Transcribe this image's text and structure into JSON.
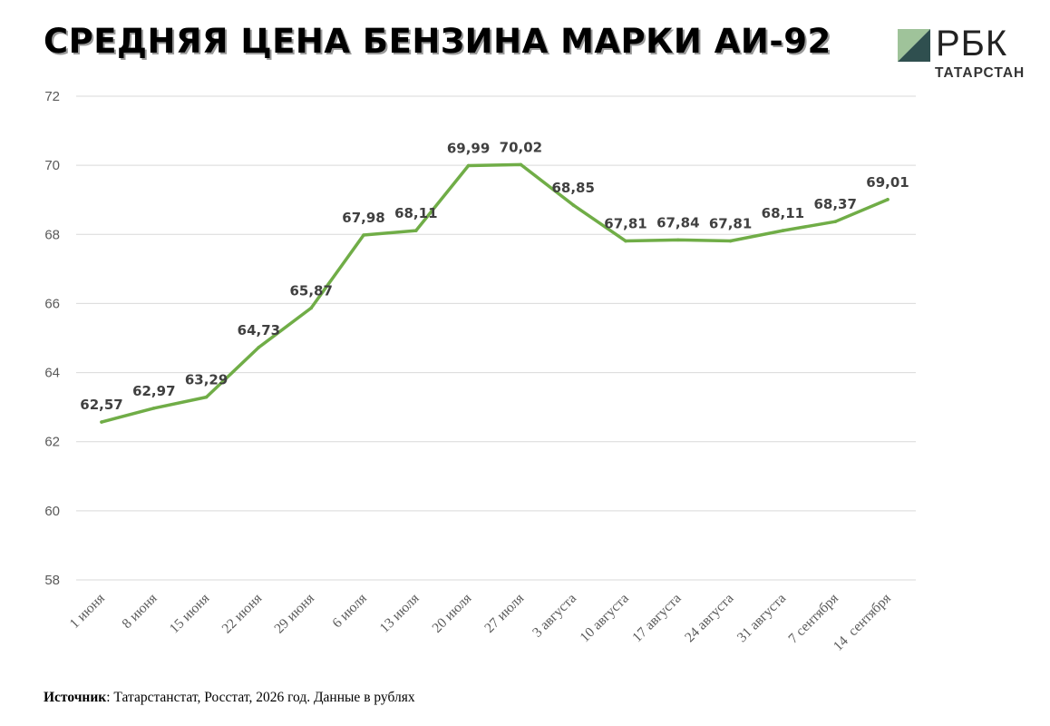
{
  "header": {
    "title": "СРЕДНЯЯ ЦЕНА БЕНЗИНА МАРКИ АИ-92"
  },
  "logo": {
    "wordmark": "РБК",
    "subtitle": "ТАТАРСТАН",
    "colors": {
      "light": "#9fc39a",
      "dark": "#2f4f4f"
    }
  },
  "footer": {
    "source_label": "Источник",
    "source_text": ": Татарстанстат, Росстат, 2026 год. Данные в рублях"
  },
  "chart_data": {
    "type": "line",
    "title": "СРЕДНЯЯ ЦЕНА БЕНЗИНА МАРКИ АИ-92",
    "xlabel": "",
    "ylabel": "",
    "categories": [
      "1 июня",
      "8 июня",
      "15 июня",
      "22 июня",
      "29 июня",
      "6 июля",
      "13 июля",
      "20 июля",
      "27 июля",
      "3 августа",
      "10 августа",
      "17 августа",
      "24 августа",
      "31 августа",
      "7 сентября",
      "14  сентября"
    ],
    "series": [
      {
        "values": [
          62.57,
          62.97,
          63.29,
          64.73,
          65.87,
          67.98,
          68.11,
          69.99,
          70.02,
          68.85,
          67.81,
          67.84,
          67.81,
          68.11,
          68.37,
          69.01
        ],
        "labels": [
          "62,57",
          "62,97",
          "63,29",
          "64,73",
          "65,87",
          "67,98",
          "68,11",
          "69,99",
          "70,02",
          "68,85",
          "67,81",
          "67,84",
          "67,81",
          "68,11",
          "68,37",
          "69,01"
        ]
      }
    ],
    "ylim": [
      58,
      72
    ],
    "yticks": [
      "58",
      "60",
      "62",
      "64",
      "66",
      "68",
      "70",
      "72"
    ],
    "ytick_values": [
      58,
      60,
      62,
      64,
      66,
      68,
      70,
      72
    ],
    "grid": true,
    "legend": "none",
    "colors": {
      "line": "#70ad47",
      "grid": "#d9d9d9",
      "axis_text": "#595959",
      "label_text": "#404040"
    }
  }
}
